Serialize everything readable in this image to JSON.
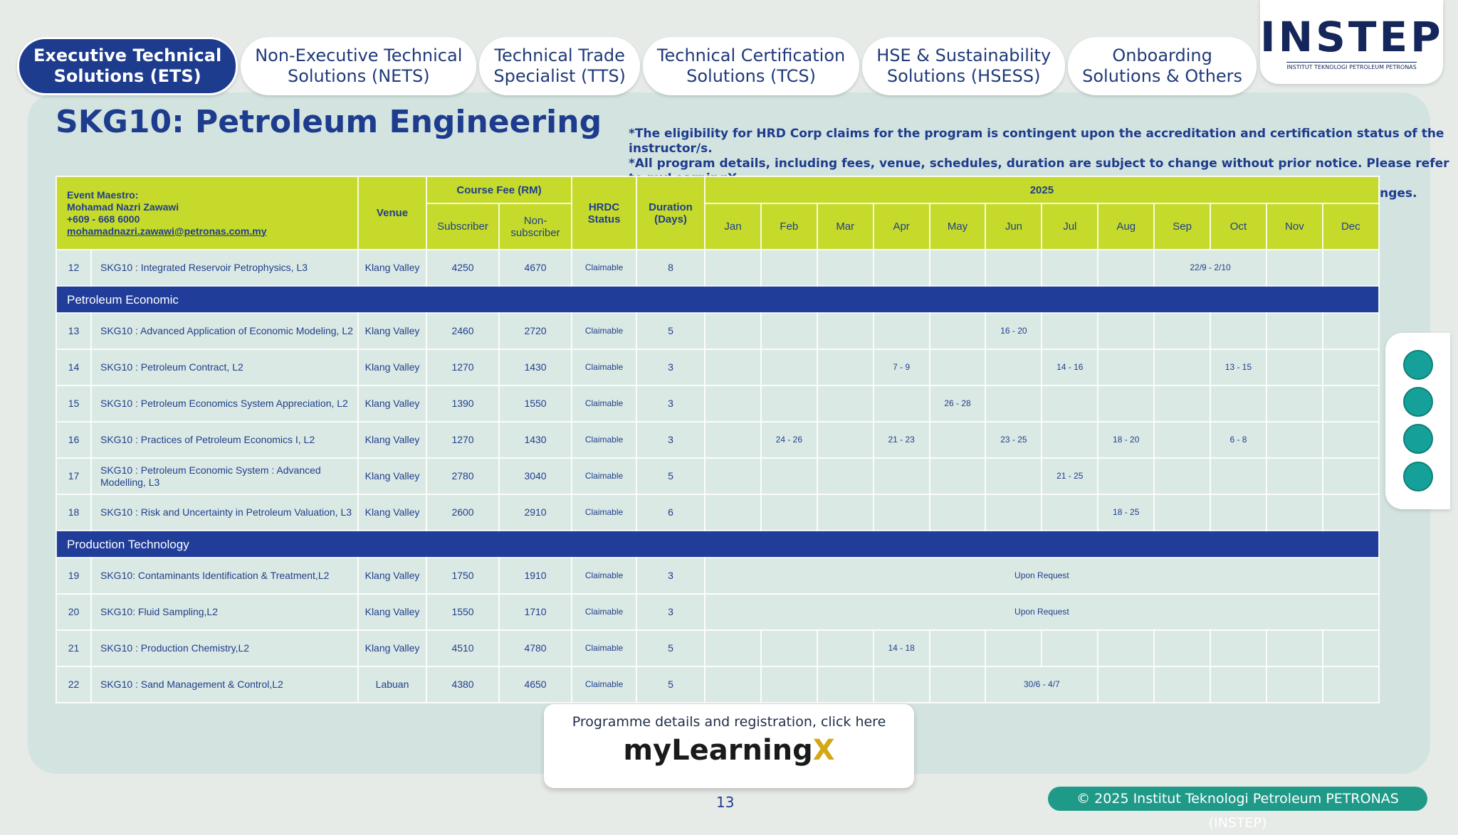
{
  "tabs": [
    {
      "lines": [
        "Executive Technical",
        "Solutions (ETS)"
      ],
      "active": true
    },
    {
      "lines": [
        "Non-Executive Technical",
        "Solutions (NETS)"
      ]
    },
    {
      "lines": [
        "Technical Trade",
        "Specialist (TTS)"
      ]
    },
    {
      "lines": [
        "Technical Certification",
        "Solutions (TCS)"
      ]
    },
    {
      "lines": [
        "HSE & Sustainability",
        "Solutions (HSESS)"
      ]
    },
    {
      "lines": [
        "Onboarding",
        "Solutions & Others"
      ]
    }
  ],
  "logo": {
    "name": "INSTEP",
    "subtitle": "INSTITUT TEKNOLOGI PETROLEUM PETRONAS"
  },
  "header": {
    "title": "SKG10: Petroleum Engineering",
    "notes": [
      "*The eligibility for HRD Corp claims for the program is contingent upon the accreditation and certification status of the instructor/s.",
      "*All program details, including fees, venue, schedules, duration are subject to change without prior notice. Please refer to myLearningX",
      "for the latest updates. The organizers shall not be liable for any losses or disruptions resulting from such changes."
    ]
  },
  "table": {
    "maestro": {
      "label": "Event Maestro:",
      "name": "Mohamad Nazri Zawawi",
      "phone": "+609 - 668 6000",
      "email": "mohamadnazri.zawawi@petronas.com.my"
    },
    "venue": "Venue",
    "course_fee": "Course Fee (RM)",
    "subscriber": "Subscriber",
    "non_subscriber": "Non-subscriber",
    "hrdc": "HRDC Status",
    "duration": "Duration (Days)",
    "year": "2025",
    "months": [
      "Jan",
      "Feb",
      "Mar",
      "Apr",
      "May",
      "Jun",
      "Jul",
      "Aug",
      "Sep",
      "Oct",
      "Nov",
      "Dec"
    ],
    "rows": [
      {
        "no": 12,
        "name": "SKG10 : Integrated Reservoir Petrophysics, L3",
        "venue": "Klang Valley",
        "subscriber": 4250,
        "non_subscriber": 4670,
        "hrdc": "Claimable",
        "duration": 8,
        "schedule": [
          {
            "from": "Sep",
            "to": "Oct",
            "dates": "22/9 - 2/10"
          }
        ]
      },
      {
        "section": "Petroleum Economic"
      },
      {
        "no": 13,
        "name": "SKG10 : Advanced Application of Economic Modeling, L2",
        "venue": "Klang Valley",
        "subscriber": 2460,
        "non_subscriber": 2720,
        "hrdc": "Claimable",
        "duration": 5,
        "schedule": [
          {
            "from": "Jun",
            "to": "Jun",
            "dates": "16 - 20"
          }
        ]
      },
      {
        "no": 14,
        "name": "SKG10 : Petroleum Contract, L2",
        "venue": "Klang Valley",
        "subscriber": 1270,
        "non_subscriber": 1430,
        "hrdc": "Claimable",
        "duration": 3,
        "schedule": [
          {
            "from": "Apr",
            "to": "Apr",
            "dates": "7 - 9"
          },
          {
            "from": "Jul",
            "to": "Jul",
            "dates": "14 - 16"
          },
          {
            "from": "Oct",
            "to": "Oct",
            "dates": "13 - 15"
          }
        ]
      },
      {
        "no": 15,
        "name": "SKG10 : Petroleum Economics System Appreciation, L2",
        "venue": "Klang Valley",
        "subscriber": 1390,
        "non_subscriber": 1550,
        "hrdc": "Claimable",
        "duration": 3,
        "schedule": [
          {
            "from": "May",
            "to": "May",
            "dates": "26 - 28"
          }
        ]
      },
      {
        "no": 16,
        "name": "SKG10 : Practices of Petroleum Economics I, L2",
        "venue": "Klang Valley",
        "subscriber": 1270,
        "non_subscriber": 1430,
        "hrdc": "Claimable",
        "duration": 3,
        "schedule": [
          {
            "from": "Feb",
            "to": "Feb",
            "dates": "24 - 26"
          },
          {
            "from": "Apr",
            "to": "Apr",
            "dates": "21 - 23"
          },
          {
            "from": "Jun",
            "to": "Jun",
            "dates": "23 - 25"
          },
          {
            "from": "Aug",
            "to": "Aug",
            "dates": "18 - 20"
          },
          {
            "from": "Oct",
            "to": "Oct",
            "dates": "6 - 8"
          }
        ]
      },
      {
        "no": 17,
        "name": "SKG10 : Petroleum Economic System : Advanced Modelling, L3",
        "venue": "Klang Valley",
        "subscriber": 2780,
        "non_subscriber": 3040,
        "hrdc": "Claimable",
        "duration": 5,
        "schedule": [
          {
            "from": "Jul",
            "to": "Jul",
            "dates": "21 - 25"
          }
        ]
      },
      {
        "no": 18,
        "name": "SKG10 : Risk and Uncertainty in Petroleum Valuation, L3",
        "venue": "Klang Valley",
        "subscriber": 2600,
        "non_subscriber": 2910,
        "hrdc": "Claimable",
        "duration": 6,
        "schedule": [
          {
            "from": "Aug",
            "to": "Aug",
            "dates": "18 - 25"
          }
        ]
      },
      {
        "section": "Production Technology"
      },
      {
        "no": 19,
        "name": "SKG10: Contaminants Identification & Treatment,L2",
        "venue": "Klang Valley",
        "subscriber": 1750,
        "non_subscriber": 1910,
        "hrdc": "Claimable",
        "duration": 3,
        "schedule": [
          {
            "from": "Jan",
            "to": "Dec",
            "dates": "Upon Request"
          }
        ]
      },
      {
        "no": 20,
        "name": "SKG10: Fluid Sampling,L2",
        "venue": "Klang Valley",
        "subscriber": 1550,
        "non_subscriber": 1710,
        "hrdc": "Claimable",
        "duration": 3,
        "schedule": [
          {
            "from": "Jan",
            "to": "Dec",
            "dates": "Upon Request"
          }
        ]
      },
      {
        "no": 21,
        "name": "SKG10 : Production Chemistry,L2",
        "venue": "Klang Valley",
        "subscriber": 4510,
        "non_subscriber": 4780,
        "hrdc": "Claimable",
        "duration": 5,
        "schedule": [
          {
            "from": "Apr",
            "to": "Apr",
            "dates": "14 - 18"
          }
        ]
      },
      {
        "no": 22,
        "name": "SKG10 : Sand Management & Control,L2",
        "venue": "Labuan",
        "subscriber": 4380,
        "non_subscriber": 4650,
        "hrdc": "Claimable",
        "duration": 5,
        "schedule": [
          {
            "from": "Jun",
            "to": "Jul",
            "dates": "30/6 - 4/7"
          }
        ]
      }
    ]
  },
  "registration": {
    "text": "Programme details and registration, click here",
    "brand": "myLearning",
    "brand_mark": "X"
  },
  "footer": {
    "page": "13",
    "copyright": "© 2025 Institut Teknologi Petroleum PETRONAS (INSTEP)"
  }
}
